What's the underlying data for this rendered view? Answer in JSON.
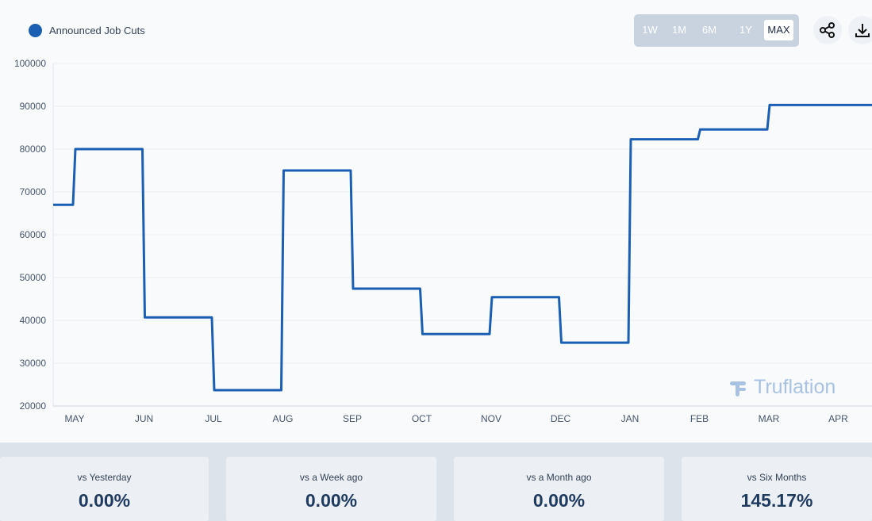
{
  "legend": {
    "label": "Announced Job Cuts",
    "color": "#1a5fb4"
  },
  "range_buttons": [
    {
      "label": "1W",
      "active": false
    },
    {
      "label": "1M",
      "active": false
    },
    {
      "label": "6M",
      "active": false
    },
    {
      "label": "1Y",
      "active": false
    },
    {
      "label": "MAX",
      "active": true
    }
  ],
  "toolbar": {
    "share_icon": "share-icon",
    "download_icon": "download-icon"
  },
  "watermark": {
    "text": "Truflation"
  },
  "stats": [
    {
      "label": "vs Yesterday",
      "value": "0.00%"
    },
    {
      "label": "vs a Week ago",
      "value": "0.00%"
    },
    {
      "label": "vs a Month ago",
      "value": "0.00%"
    },
    {
      "label": "vs Six Months",
      "value": "145.17%"
    }
  ],
  "chart_data": {
    "type": "line",
    "interpolation": "step",
    "categories": [
      "MAY",
      "JUN",
      "JUL",
      "AUG",
      "SEP",
      "OCT",
      "NOV",
      "DEC",
      "JAN",
      "FEB",
      "MAR",
      "APR"
    ],
    "ylim": [
      20000,
      100000
    ],
    "y_ticks": [
      20000,
      30000,
      40000,
      50000,
      60000,
      70000,
      80000,
      90000,
      100000
    ],
    "grid": true,
    "series": [
      {
        "name": "Announced Job Cuts",
        "color": "#1a5fb4",
        "values": [
          80000,
          40700,
          23700,
          75000,
          47400,
          36800,
          45400,
          34800,
          82300,
          84600,
          90300,
          90300
        ],
        "start_value": 67000
      }
    ]
  }
}
